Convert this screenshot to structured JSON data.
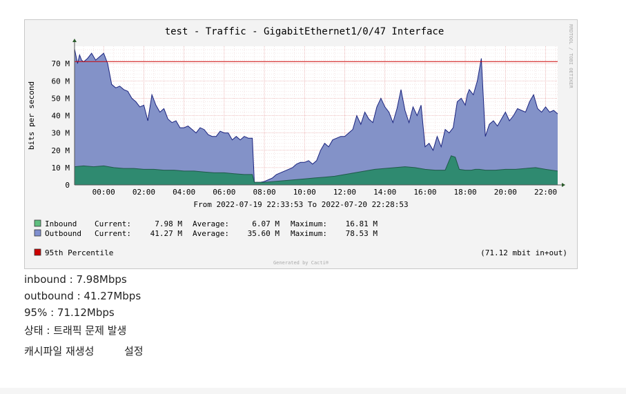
{
  "chart_data": {
    "type": "area",
    "title": "test - Traffic - GigabitEthernet1/0/47 Interface",
    "ylabel": "bits per second",
    "ylim": [
      0,
      80
    ],
    "yticks": [
      0,
      10,
      20,
      30,
      40,
      50,
      60,
      70
    ],
    "ytick_labels": [
      "0",
      "10 M",
      "20 M",
      "30 M",
      "40 M",
      "50 M",
      "60 M",
      "70 M"
    ],
    "xlim": [
      22.55,
      46.6
    ],
    "xticks": [
      24,
      26,
      28,
      30,
      32,
      34,
      36,
      38,
      40,
      42,
      44,
      46
    ],
    "xtick_labels": [
      "00:00",
      "02:00",
      "04:00",
      "06:00",
      "08:00",
      "10:00",
      "12:00",
      "14:00",
      "16:00",
      "18:00",
      "20:00",
      "22:00"
    ],
    "grid": true,
    "period": "From 2022-07-19 22:33:53 To 2022-07-20 22:28:53",
    "side_text": "RRDTOOL / TOBI OETIKER",
    "footer": "Generated by Cacti®",
    "percentile": {
      "label": "95th Percentile",
      "value": 71.12,
      "note": "(71.12 mbit in+out)",
      "color": "#cc0000"
    },
    "series": [
      {
        "name": "Inbound",
        "color": "#5fbf7f",
        "fill": "#2f8a70",
        "current": "7.98 M",
        "average": "6.07 M",
        "maximum": "16.81 M",
        "x": [
          22.55,
          23.0,
          23.5,
          24.0,
          24.5,
          25.0,
          25.5,
          26.0,
          26.5,
          27.0,
          27.5,
          28.0,
          28.5,
          29.0,
          29.5,
          30.0,
          30.5,
          31.0,
          31.4,
          31.5,
          32.0,
          32.5,
          33.0,
          33.5,
          34.0,
          34.5,
          35.0,
          35.5,
          36.0,
          36.5,
          37.0,
          37.5,
          38.0,
          38.5,
          39.0,
          39.5,
          40.0,
          40.5,
          41.0,
          41.3,
          41.5,
          41.7,
          42.0,
          42.3,
          42.5,
          42.7,
          43.0,
          43.5,
          44.0,
          44.5,
          45.0,
          45.5,
          46.0,
          46.6
        ],
        "y": [
          10.5,
          11,
          10.5,
          11,
          10,
          9.5,
          9.5,
          9,
          9,
          8.5,
          8.5,
          8,
          8,
          7.5,
          7,
          7,
          6.5,
          6,
          6,
          1.5,
          1.5,
          2,
          2.5,
          3,
          3.5,
          4,
          4.5,
          5,
          6,
          7,
          8,
          9,
          9.5,
          10,
          10.5,
          10,
          9,
          8.5,
          8.5,
          16.8,
          16,
          9,
          8.5,
          8.5,
          9,
          9,
          8.5,
          8.5,
          9,
          9,
          9.5,
          10,
          9,
          8
        ]
      },
      {
        "name": "Outbound",
        "color": "#7f8fcf",
        "fill": "#8392c8",
        "current": "41.27 M",
        "average": "35.60 M",
        "maximum": "78.53 M",
        "x": [
          22.55,
          22.7,
          22.8,
          22.9,
          23.0,
          23.2,
          23.4,
          23.6,
          23.8,
          24.0,
          24.2,
          24.4,
          24.6,
          24.8,
          25.0,
          25.2,
          25.4,
          25.6,
          25.8,
          26.0,
          26.2,
          26.4,
          26.6,
          26.8,
          27.0,
          27.2,
          27.4,
          27.6,
          27.8,
          28.0,
          28.2,
          28.4,
          28.6,
          28.8,
          29.0,
          29.2,
          29.4,
          29.6,
          29.8,
          30.0,
          30.2,
          30.4,
          30.6,
          30.8,
          31.0,
          31.2,
          31.4,
          31.5,
          31.8,
          32.0,
          32.2,
          32.4,
          32.6,
          32.8,
          33.0,
          33.2,
          33.4,
          33.6,
          33.8,
          34.0,
          34.2,
          34.4,
          34.6,
          34.8,
          35.0,
          35.2,
          35.4,
          35.6,
          35.8,
          36.0,
          36.2,
          36.4,
          36.6,
          36.8,
          37.0,
          37.2,
          37.4,
          37.6,
          37.8,
          38.0,
          38.2,
          38.4,
          38.6,
          38.8,
          39.0,
          39.2,
          39.4,
          39.6,
          39.8,
          40.0,
          40.2,
          40.4,
          40.6,
          40.8,
          41.0,
          41.2,
          41.4,
          41.6,
          41.8,
          42.0,
          42.1,
          42.2,
          42.4,
          42.6,
          42.8,
          43.0,
          43.2,
          43.4,
          43.6,
          43.8,
          44.0,
          44.2,
          44.4,
          44.6,
          44.8,
          45.0,
          45.2,
          45.4,
          45.6,
          45.8,
          46.0,
          46.2,
          46.4,
          46.6
        ],
        "y": [
          78.5,
          70,
          75,
          72,
          71,
          73,
          76,
          72,
          74,
          76,
          70,
          58,
          56,
          57,
          55,
          54,
          50,
          48,
          45,
          46,
          37,
          52,
          46,
          42,
          44,
          38,
          36,
          37,
          33,
          33,
          34,
          32,
          30,
          33,
          32,
          29,
          28,
          28,
          31,
          30,
          30,
          26,
          28,
          26,
          28,
          27,
          27,
          1.5,
          1.5,
          2,
          3,
          4,
          6,
          7,
          8,
          9,
          10,
          12,
          13,
          13,
          14,
          12,
          14,
          20,
          24,
          22,
          26,
          27,
          28,
          28,
          30,
          32,
          40,
          35,
          42,
          38,
          36,
          45,
          50,
          45,
          42,
          36,
          44,
          55,
          43,
          36,
          45,
          40,
          46,
          22,
          24,
          20,
          28,
          22,
          32,
          30,
          33,
          48,
          50,
          46,
          52,
          55,
          52,
          60,
          73,
          28,
          35,
          37,
          34,
          38,
          42,
          37,
          40,
          44,
          43,
          42,
          48,
          52,
          44,
          42,
          45,
          42,
          43,
          41
        ]
      }
    ]
  },
  "info": {
    "inbound": "inbound : 7.98Mbps",
    "outbound": "outbound : 41.27Mbps",
    "percentile": "95% : 71.12Mbps",
    "status": "상태 : 트래픽 문제 발생"
  },
  "links": {
    "regenerate_cache": "캐시파일 재생성",
    "settings": "설정"
  }
}
